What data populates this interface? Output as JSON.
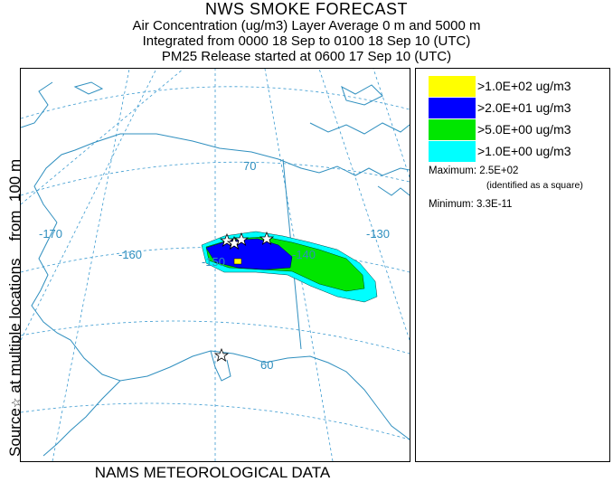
{
  "header": {
    "title": "NWS SMOKE FORECAST",
    "line1": "Air Concentration (ug/m3) Layer Average    0 m and  5000 m",
    "line2": "Integrated from 0000 18 Sep to 0100 18 Sep 10 (UTC)",
    "line3": "PM25 Release started at 0600 17 Sep 10 (UTC)"
  },
  "side_label": {
    "source_prefix": "Source",
    "source_symbol": "☆",
    "rest": " at multiple locations    from  100 m"
  },
  "footer": "NAMS METEOROLOGICAL DATA",
  "map": {
    "grid_labels": {
      "lon_170": "-170",
      "lon_160": "-160",
      "lon_150": "-150",
      "lon_140": "-140",
      "lon_130": "-130",
      "lat_70": "70",
      "lat_60": "60"
    },
    "colors": {
      "coast": "#2f8fbf",
      "grid": "#3a9ad0",
      "level1": "#00ffff",
      "level2": "#00e600",
      "level3": "#0000ff",
      "level4": "#ffff00"
    }
  },
  "legend": {
    "items": [
      {
        "label": ">1.0E+02 ug/m3",
        "color": "#ffff00"
      },
      {
        "label": ">2.0E+01 ug/m3",
        "color": "#0000ff"
      },
      {
        "label": ">5.0E+00 ug/m3",
        "color": "#00e600"
      },
      {
        "label": ">1.0E+00 ug/m3",
        "color": "#00ffff"
      }
    ],
    "maximum_label": "Maximum: ",
    "maximum_value": "2.5E+02",
    "maximum_note": "(identified as a square)",
    "minimum_label": "Minimum: ",
    "minimum_value": "3.3E-11"
  }
}
